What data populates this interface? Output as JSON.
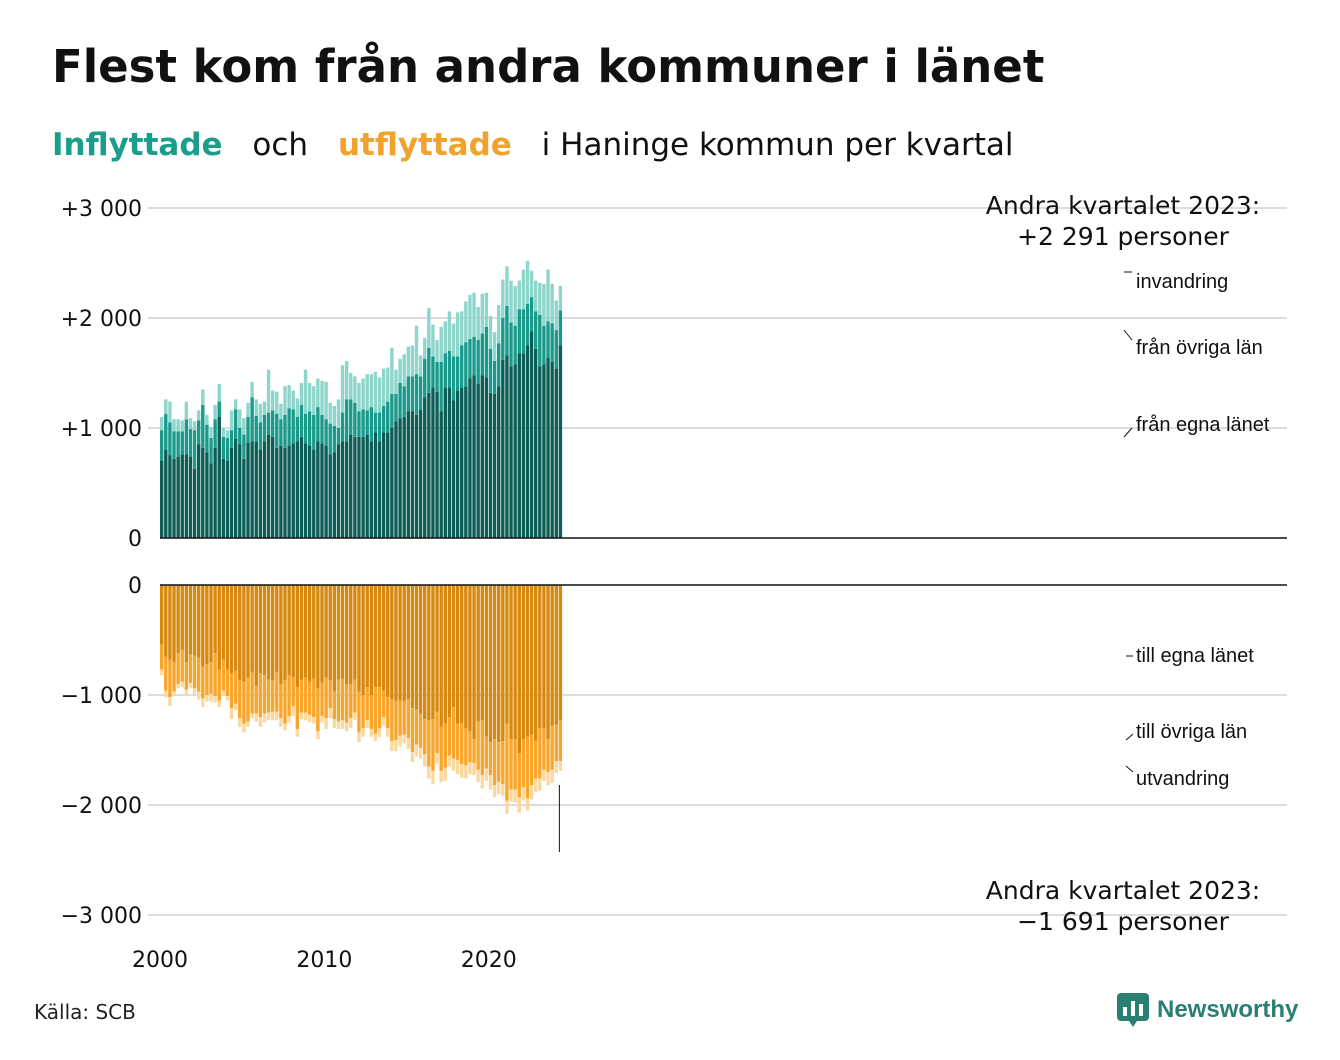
{
  "title": "Flest kom från andra kommuner i länet",
  "subtitle": {
    "in_word": "Inflyttade",
    "and_word": "och",
    "out_word": "utflyttade",
    "rest": "i Haninge  kommun  per  kvartal"
  },
  "source": "Källa: SCB",
  "logo": {
    "text": "Newsworthy",
    "icon": "newsworthy-chart-icon"
  },
  "colors": {
    "in_egna": "#0d5e56",
    "in_ovriga": "#1a9a8a",
    "in_invandring": "#8ed6cc",
    "out_egna": "#d6880f",
    "out_ovriga": "#f8a52b",
    "out_utvandring": "#fad9a0",
    "grid": "#dddddd",
    "axis": "#111111"
  },
  "chart_data": {
    "type": "bar",
    "stacked": true,
    "x_start": "2000Q1",
    "x_end": "2023Q2",
    "x_tick_labels": [
      "2000",
      "2010",
      "2020"
    ],
    "panels": [
      {
        "name": "inflyttade",
        "y_ticks": [
          "+3 000",
          "+2 000",
          "+1 000",
          "0"
        ],
        "ylim": [
          0,
          3000
        ],
        "series": [
          {
            "name": "från egna länet",
            "values": [
              700,
              800,
              750,
              720,
              740,
              760,
              760,
              740,
              630,
              850,
              820,
              780,
              680,
              820,
              1100,
              720,
              700,
              820,
              900,
              850,
              720,
              870,
              880,
              880,
              800,
              880,
              940,
              920,
              820,
              840,
              820,
              840,
              860,
              880,
              920,
              860,
              840,
              800,
              880,
              860,
              840,
              760,
              780,
              850,
              880,
              880,
              940,
              920,
              920,
              920,
              940,
              880,
              960,
              880,
              960,
              960,
              1000,
              1060,
              1090,
              1100,
              1150,
              1150,
              1120,
              1170,
              1280,
              1320,
              1370,
              1330,
              1150,
              1370,
              1370,
              1250,
              1340,
              1370,
              1380,
              1450,
              1480,
              1400,
              1480,
              1460,
              1320,
              1310,
              1380,
              1620,
              1660,
              1560,
              1580,
              1680,
              1680,
              1750,
              1880,
              1720,
              1560,
              1580,
              1640,
              1600,
              1540,
              1750
            ]
          },
          {
            "name": "från övriga län",
            "values": [
              280,
              330,
              300,
              250,
              230,
              210,
              320,
              250,
              350,
              220,
              390,
              250,
              230,
              260,
              140,
              200,
              210,
              160,
              270,
              150,
              220,
              230,
              400,
              230,
              250,
              240,
              200,
              240,
              310,
              240,
              300,
              340,
              310,
              220,
              290,
              270,
              310,
              320,
              310,
              260,
              240,
              280,
              240,
              150,
              260,
              380,
              320,
              310,
              230,
              250,
              220,
              310,
              180,
              260,
              240,
              280,
              310,
              250,
              320,
              280,
              320,
              320,
              370,
              300,
              350,
              410,
              280,
              270,
              450,
              310,
              330,
              400,
              310,
              380,
              400,
              360,
              350,
              400,
              380,
              460,
              400,
              300,
              390,
              380,
              450,
              400,
              350,
              400,
              400,
              380,
              310,
              340,
              470,
              350,
              330,
              350,
              350,
              320
            ]
          },
          {
            "name": "invandring",
            "values": [
              120,
              130,
              190,
              110,
              110,
              100,
              160,
              100,
              80,
              90,
              140,
              90,
              100,
              130,
              160,
              80,
              70,
              180,
              90,
              170,
              150,
              130,
              140,
              150,
              170,
              120,
              390,
              180,
              200,
              140,
              260,
              210,
              170,
              170,
              200,
              400,
              260,
              260,
              260,
              310,
              340,
              190,
              180,
              260,
              430,
              350,
              240,
              240,
              260,
              280,
              330,
              300,
              370,
              320,
              340,
              310,
              420,
              220,
              220,
              290,
              270,
              280,
              440,
              190,
              190,
              360,
              290,
              200,
              320,
              290,
              360,
              300,
              400,
              310,
              370,
              400,
              400,
              300,
              360,
              310,
              300,
              260,
              350,
              350,
              360,
              380,
              360,
              260,
              360,
              390,
              240,
              280,
              290,
              380,
              470,
              360,
              270,
              221
            ]
          }
        ]
      },
      {
        "name": "utflyttade",
        "y_ticks": [
          "0",
          "−1 000",
          "−2 000",
          "−3 000"
        ],
        "ylim": [
          -3000,
          0
        ],
        "series": [
          {
            "name": "till egna länet",
            "values": [
              -540,
              -650,
              -680,
              -700,
              -620,
              -590,
              -700,
              -630,
              -640,
              -660,
              -740,
              -720,
              -700,
              -620,
              -770,
              -680,
              -770,
              -800,
              -780,
              -870,
              -880,
              -840,
              -790,
              -920,
              -800,
              -820,
              -860,
              -870,
              -790,
              -900,
              -870,
              -820,
              -840,
              -930,
              -860,
              -840,
              -880,
              -850,
              -940,
              -890,
              -840,
              -870,
              -970,
              -860,
              -850,
              -900,
              -900,
              -860,
              -970,
              -1000,
              -930,
              -1000,
              -930,
              -930,
              -960,
              -1020,
              -1040,
              -1050,
              -1050,
              -1060,
              -1040,
              -1120,
              -1130,
              -1170,
              -1220,
              -1230,
              -1220,
              -1150,
              -1290,
              -1260,
              -1200,
              -1110,
              -1260,
              -1250,
              -1300,
              -1330,
              -1400,
              -1240,
              -1230,
              -1380,
              -1430,
              -1400,
              -1430,
              -1420,
              -1260,
              -1400,
              -1400,
              -1530,
              -1400,
              -1380,
              -1360,
              -1420,
              -1300,
              -1300,
              -1400,
              -1280,
              -1270,
              -1234
            ]
          },
          {
            "name": "till övriga län",
            "values": [
              -230,
              -310,
              -340,
              -270,
              -280,
              -290,
              -250,
              -260,
              -300,
              -310,
              -290,
              -280,
              -290,
              -390,
              -280,
              -280,
              -240,
              -320,
              -300,
              -340,
              -380,
              -400,
              -380,
              -250,
              -400,
              -350,
              -300,
              -280,
              -360,
              -310,
              -390,
              -370,
              -260,
              -380,
              -300,
              -320,
              -300,
              -350,
              -390,
              -300,
              -370,
              -250,
              -250,
              -380,
              -380,
              -350,
              -310,
              -300,
              -370,
              -300,
              -300,
              -310,
              -420,
              -370,
              -240,
              -280,
              -380,
              -360,
              -320,
              -300,
              -350,
              -400,
              -320,
              -310,
              -320,
              -420,
              -470,
              -380,
              -400,
              -400,
              -350,
              -470,
              -330,
              -380,
              -340,
              -280,
              -220,
              -440,
              -500,
              -290,
              -300,
              -420,
              -360,
              -390,
              -700,
              -460,
              -460,
              -400,
              -440,
              -560,
              -460,
              -340,
              -460,
              -380,
              -300,
              -400,
              -330,
              -368
            ]
          },
          {
            "name": "utvandring",
            "values": [
              -50,
              -60,
              -80,
              -40,
              -40,
              -50,
              -60,
              -50,
              -50,
              -70,
              -80,
              -60,
              -70,
              -60,
              -60,
              -50,
              -40,
              -100,
              -60,
              -80,
              -80,
              -50,
              -40,
              -70,
              -90,
              -80,
              -70,
              -80,
              -80,
              -80,
              -60,
              -60,
              -90,
              -70,
              -60,
              -70,
              -70,
              -60,
              -70,
              -60,
              -100,
              -90,
              -80,
              -70,
              -80,
              -80,
              -90,
              -70,
              -90,
              -80,
              -70,
              -70,
              -70,
              -80,
              -80,
              -80,
              -90,
              -100,
              -100,
              -80,
              -100,
              -90,
              -110,
              -100,
              -110,
              -110,
              -120,
              -100,
              -100,
              -120,
              -100,
              -110,
              -130,
              -120,
              -120,
              -110,
              -110,
              -110,
              -120,
              -110,
              -130,
              -110,
              -110,
              -110,
              -120,
              -110,
              -120,
              -140,
              -120,
              -110,
              -130,
              -120,
              -110,
              -100,
              -120,
              -120,
              -110,
              -89
            ]
          }
        ]
      }
    ],
    "annotations": {
      "top": [
        "Andra kvartalet 2023:",
        "+2 291 personer"
      ],
      "bottom": [
        "Andra kvartalet 2023:",
        "−1 691 personer"
      ],
      "in_labels": [
        "invandring",
        "från övriga län",
        "från egna länet"
      ],
      "out_labels": [
        "till egna länet",
        "till övriga län",
        "utvandring"
      ]
    }
  }
}
